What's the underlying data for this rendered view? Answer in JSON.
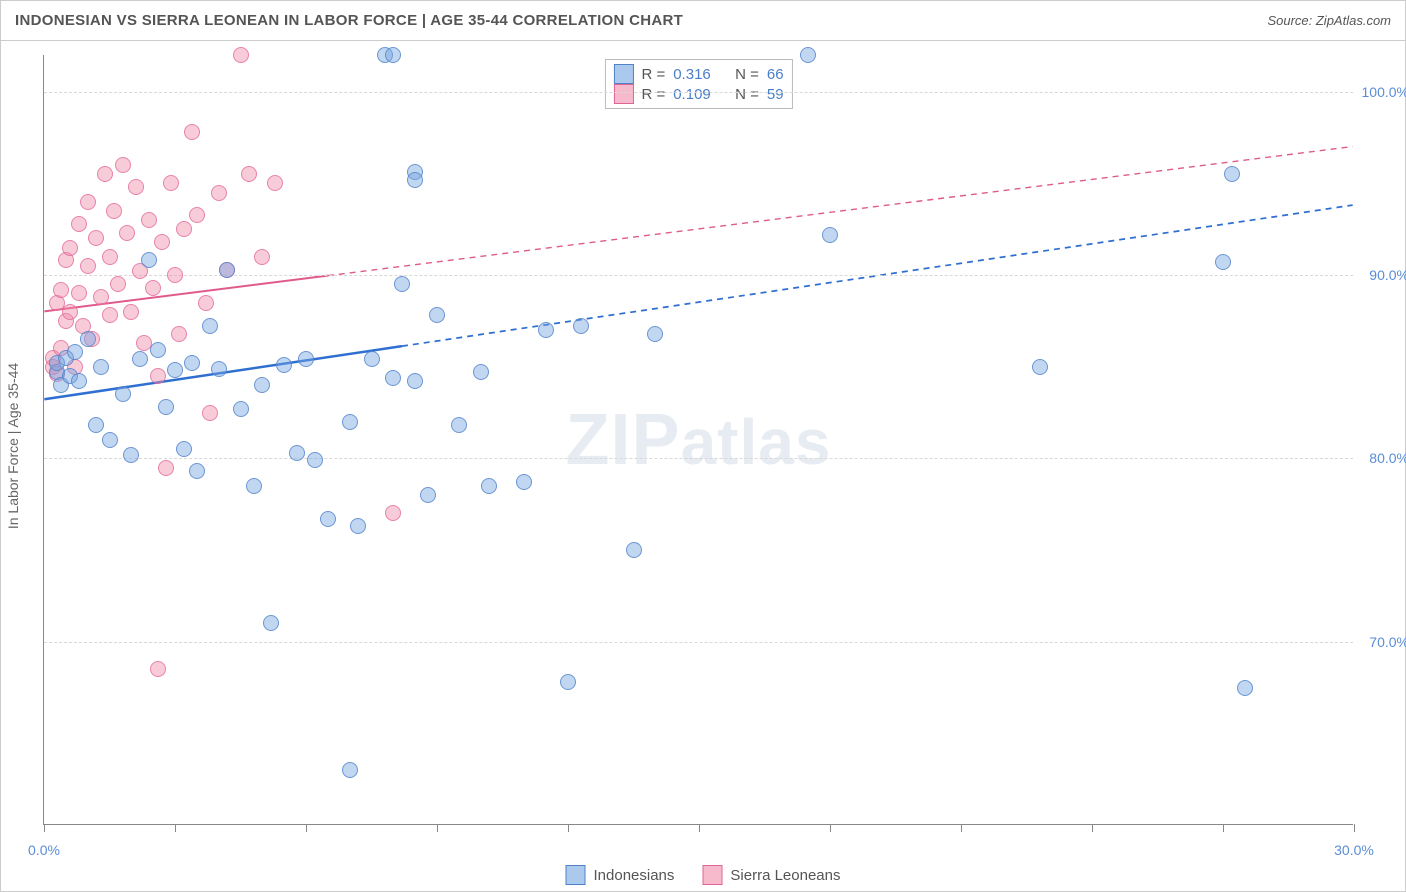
{
  "title": "INDONESIAN VS SIERRA LEONEAN IN LABOR FORCE | AGE 35-44 CORRELATION CHART",
  "source": "Source: ZipAtlas.com",
  "y_axis_label": "In Labor Force | Age 35-44",
  "watermark": {
    "zip": "ZIP",
    "atlas": "atlas"
  },
  "chart": {
    "type": "scatter",
    "xlim": [
      0,
      30
    ],
    "ylim": [
      60,
      102
    ],
    "x_ticks": [
      0,
      3,
      6,
      9,
      12,
      15,
      18,
      21,
      24,
      27,
      30
    ],
    "x_tick_labels": {
      "0": "0.0%",
      "30": "30.0%"
    },
    "y_gridlines": [
      70,
      80,
      90,
      100
    ],
    "y_tick_labels": [
      "70.0%",
      "80.0%",
      "90.0%",
      "100.0%"
    ],
    "background_color": "#ffffff",
    "grid_color": "#d8d8d8",
    "axis_color": "#888888"
  },
  "series": {
    "blue": {
      "label": "Indonesians",
      "fill": "rgba(115,165,225,0.45)",
      "stroke": "#5082c8",
      "r_value": "0.316",
      "n_value": "66",
      "trend": {
        "x1": 0,
        "y1": 83.2,
        "x2": 30,
        "y2": 93.8,
        "solid_until": 8.2,
        "color": "#2e6fd1",
        "width": 2.5
      },
      "points": [
        [
          0.3,
          84.7
        ],
        [
          0.3,
          85.2
        ],
        [
          0.4,
          84.0
        ],
        [
          0.5,
          85.5
        ],
        [
          0.6,
          84.5
        ],
        [
          0.7,
          85.8
        ],
        [
          0.8,
          84.2
        ],
        [
          1.0,
          86.5
        ],
        [
          1.2,
          81.8
        ],
        [
          1.3,
          85.0
        ],
        [
          1.5,
          81.0
        ],
        [
          1.8,
          83.5
        ],
        [
          2.0,
          80.2
        ],
        [
          2.2,
          85.4
        ],
        [
          2.4,
          90.8
        ],
        [
          2.6,
          85.9
        ],
        [
          2.8,
          82.8
        ],
        [
          3.0,
          84.8
        ],
        [
          3.2,
          80.5
        ],
        [
          3.4,
          85.2
        ],
        [
          3.5,
          79.3
        ],
        [
          3.8,
          87.2
        ],
        [
          4.0,
          84.9
        ],
        [
          4.2,
          90.3
        ],
        [
          4.5,
          82.7
        ],
        [
          4.8,
          78.5
        ],
        [
          5.0,
          84.0
        ],
        [
          5.2,
          71.0
        ],
        [
          5.5,
          85.1
        ],
        [
          5.8,
          80.3
        ],
        [
          6.0,
          85.4
        ],
        [
          6.2,
          79.9
        ],
        [
          6.5,
          76.7
        ],
        [
          7.0,
          82.0
        ],
        [
          7.0,
          63.0
        ],
        [
          7.2,
          76.3
        ],
        [
          7.5,
          85.4
        ],
        [
          7.8,
          102.0
        ],
        [
          8.0,
          102.0
        ],
        [
          8.0,
          84.4
        ],
        [
          8.2,
          89.5
        ],
        [
          8.5,
          95.6
        ],
        [
          8.5,
          95.2
        ],
        [
          8.5,
          84.2
        ],
        [
          8.8,
          78.0
        ],
        [
          9.0,
          87.8
        ],
        [
          9.5,
          81.8
        ],
        [
          10.0,
          84.7
        ],
        [
          10.2,
          78.5
        ],
        [
          11.0,
          78.7
        ],
        [
          11.5,
          87.0
        ],
        [
          12.0,
          67.8
        ],
        [
          12.3,
          87.2
        ],
        [
          13.5,
          75.0
        ],
        [
          14.0,
          86.8
        ],
        [
          17.5,
          102.0
        ],
        [
          18.0,
          92.2
        ],
        [
          22.8,
          85.0
        ],
        [
          27.0,
          90.7
        ],
        [
          27.2,
          95.5
        ],
        [
          27.5,
          67.5
        ]
      ]
    },
    "pink": {
      "label": "Sierra Leoneans",
      "fill": "rgba(240,140,170,0.45)",
      "stroke": "#e16496",
      "r_value": "0.109",
      "n_value": "59",
      "trend": {
        "x1": 0,
        "y1": 88.0,
        "x2": 30,
        "y2": 97.0,
        "solid_until": 6.5,
        "color": "#e05a8c",
        "width": 2
      },
      "points": [
        [
          0.2,
          85.0
        ],
        [
          0.2,
          85.5
        ],
        [
          0.3,
          88.5
        ],
        [
          0.3,
          84.6
        ],
        [
          0.4,
          89.2
        ],
        [
          0.4,
          86.0
        ],
        [
          0.5,
          90.8
        ],
        [
          0.5,
          87.5
        ],
        [
          0.6,
          91.5
        ],
        [
          0.6,
          88.0
        ],
        [
          0.7,
          85.0
        ],
        [
          0.8,
          92.8
        ],
        [
          0.8,
          89.0
        ],
        [
          0.9,
          87.2
        ],
        [
          1.0,
          94.0
        ],
        [
          1.0,
          90.5
        ],
        [
          1.1,
          86.5
        ],
        [
          1.2,
          92.0
        ],
        [
          1.3,
          88.8
        ],
        [
          1.4,
          95.5
        ],
        [
          1.5,
          91.0
        ],
        [
          1.5,
          87.8
        ],
        [
          1.6,
          93.5
        ],
        [
          1.7,
          89.5
        ],
        [
          1.8,
          96.0
        ],
        [
          1.9,
          92.3
        ],
        [
          2.0,
          88.0
        ],
        [
          2.1,
          94.8
        ],
        [
          2.2,
          90.2
        ],
        [
          2.3,
          86.3
        ],
        [
          2.4,
          93.0
        ],
        [
          2.5,
          89.3
        ],
        [
          2.6,
          84.5
        ],
        [
          2.7,
          91.8
        ],
        [
          2.8,
          79.5
        ],
        [
          2.9,
          95.0
        ],
        [
          3.0,
          90.0
        ],
        [
          3.1,
          86.8
        ],
        [
          3.2,
          92.5
        ],
        [
          3.4,
          97.8
        ],
        [
          3.5,
          93.3
        ],
        [
          3.7,
          88.5
        ],
        [
          3.8,
          82.5
        ],
        [
          4.0,
          94.5
        ],
        [
          4.2,
          90.3
        ],
        [
          4.5,
          102.0
        ],
        [
          4.7,
          95.5
        ],
        [
          5.0,
          91.0
        ],
        [
          5.3,
          95.0
        ],
        [
          2.6,
          68.5
        ],
        [
          8.0,
          77.0
        ]
      ]
    }
  },
  "stats_labels": {
    "r": "R =",
    "n": "N ="
  },
  "legend": {
    "items": [
      {
        "key": "blue",
        "label": "Indonesians"
      },
      {
        "key": "pink",
        "label": "Sierra Leoneans"
      }
    ]
  }
}
